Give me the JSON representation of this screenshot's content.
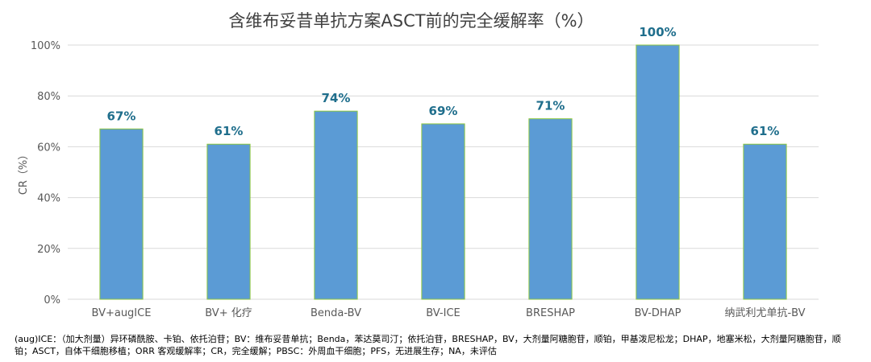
{
  "chart_data": {
    "type": "bar",
    "title": "含维布妥昔单抗方案ASCT前的完全缓解率（%）",
    "ylabel": "CR（%）",
    "xlabel": "",
    "ylim": [
      0,
      100
    ],
    "yticks": [
      0,
      20,
      40,
      60,
      80,
      100
    ],
    "ytick_labels": [
      "0%",
      "20%",
      "40%",
      "60%",
      "80%",
      "100%"
    ],
    "categories": [
      "BV+augICE",
      "BV+ 化疗",
      "Benda-BV",
      "BV-ICE",
      "BRESHAP",
      "BV-DHAP",
      "纳武利尤单抗-BV"
    ],
    "values": [
      67,
      61,
      74,
      69,
      71,
      100,
      61
    ],
    "data_labels": [
      "67%",
      "61%",
      "74%",
      "69%",
      "71%",
      "100%",
      "61%"
    ],
    "grid": true,
    "legend": "none"
  },
  "colors": {
    "bar_fill": "#5b9bd5",
    "bar_stroke": "#8cc63f",
    "data_label": "#1f6e8c",
    "title": "#404040",
    "axis_text": "#595959",
    "grid": "#d9d9d9"
  },
  "footnote": "(aug)ICE：（加大剂量）异环磷酰胺、卡铂、依托泊苷；BV：维布妥昔单抗；Benda，苯达莫司汀；依托泊苷，BRESHAP，BV，大剂量阿糖胞苷，顺铂，甲基泼尼松龙；DHAP，地塞米松，大剂量阿糖胞苷，顺铂；ASCT，自体干细胞移植；ORR 客观缓解率；CR，完全缓解；PBSC：外周血干细胞；PFS，无进展生存；NA，未评估"
}
